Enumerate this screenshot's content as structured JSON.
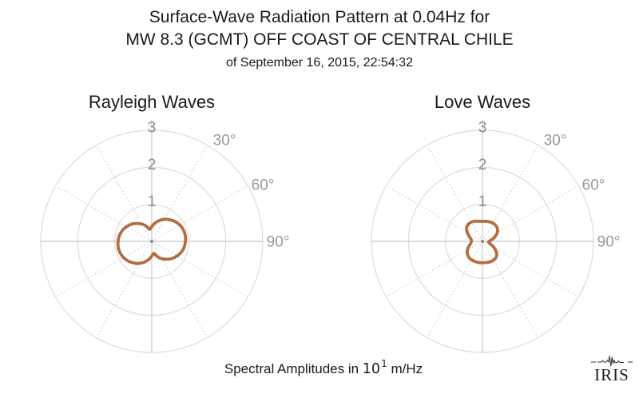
{
  "header": {
    "title_line1": "Surface-Wave Radiation Pattern at 0.04Hz for",
    "title_line2": "MW 8.3 (GCMT) OFF COAST OF CENTRAL CHILE",
    "subtitle": "of September 16, 2015, 22:54:32"
  },
  "caption": {
    "prefix": "Spectral Amplitudes in ",
    "base": "10",
    "exponent": "1",
    "suffix": " m/Hz"
  },
  "logo": {
    "text": "IRIS"
  },
  "colors": {
    "curve": "#b26e42",
    "grid_circle": "#dcdcdc",
    "grid_spoke": "#c8c8c8",
    "grid_dots": "#d2d2d2",
    "tick_label": "#8c8c8c",
    "angle_label": "#999999",
    "center_dot": "#8a8a8a",
    "text": "#1a1a1a"
  },
  "chart_data": {
    "type": "polar",
    "title": "Surface-Wave Radiation Pattern at 0.04Hz for MW 8.3 (GCMT) OFF COAST OF CENTRAL CHILE of September 16, 2015, 22:54:32",
    "frequency_hz": 0.04,
    "radial_unit": "Spectral Amplitudes in 10^1 m/Hz",
    "r_ticks": [
      1,
      2,
      3
    ],
    "r_max": 3,
    "angle_tick_degrees": [
      30,
      60,
      90
    ],
    "angle_tick_labels": [
      "30°",
      "60°",
      "90°"
    ],
    "grid": "circles solid, radial spokes dotted every 30 deg",
    "azimuth_start_deg": 0,
    "azimuth_step_deg": 10,
    "series": [
      {
        "name": "Rayleigh Waves",
        "radii": [
          0.4,
          0.5,
          0.6,
          0.69,
          0.76,
          0.83,
          0.88,
          0.91,
          0.92,
          0.91,
          0.89,
          0.85,
          0.79,
          0.72,
          0.63,
          0.54,
          0.44,
          0.33,
          0.4,
          0.5,
          0.6,
          0.69,
          0.76,
          0.83,
          0.88,
          0.91,
          0.92,
          0.91,
          0.89,
          0.85,
          0.79,
          0.72,
          0.63,
          0.54,
          0.44,
          0.33
        ]
      },
      {
        "name": "Love Waves",
        "radii": [
          0.54,
          0.55,
          0.56,
          0.57,
          0.56,
          0.53,
          0.46,
          0.36,
          0.25,
          0.18,
          0.17,
          0.25,
          0.38,
          0.5,
          0.57,
          0.59,
          0.59,
          0.58,
          0.58,
          0.58,
          0.58,
          0.58,
          0.57,
          0.53,
          0.47,
          0.39,
          0.32,
          0.3,
          0.31,
          0.38,
          0.47,
          0.56,
          0.6,
          0.6,
          0.58,
          0.55
        ]
      }
    ]
  }
}
